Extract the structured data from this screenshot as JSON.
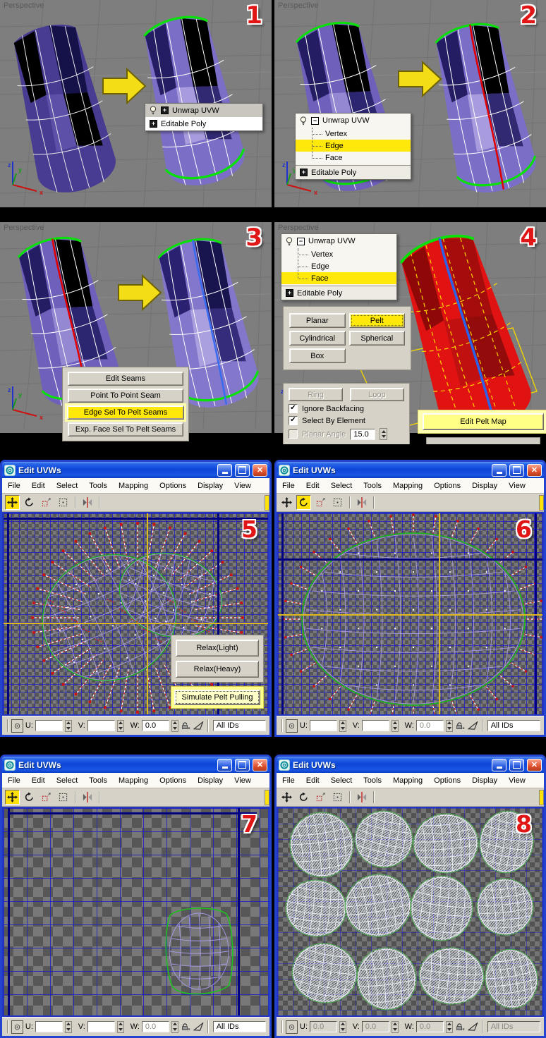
{
  "viewport_label": "Perspective",
  "axis": {
    "x": "x",
    "y": "y",
    "z": "z"
  },
  "steps": [
    "1",
    "2",
    "3",
    "4",
    "5",
    "6",
    "7",
    "8"
  ],
  "colors": {
    "selection_yellow": "#ffe80a",
    "step_number_red": "#e01616",
    "titlebar_blue": "#0c46d8",
    "seam_red": "#e00000",
    "seam_blue": "#3a6cf0",
    "rim_green": "#0ae00a",
    "uv_grid_blue": "#2222c3"
  },
  "quad_menu": {
    "items": [
      "Unwrap UVW",
      "Editable Poly"
    ]
  },
  "modifier_tree": {
    "root": "Unwrap UVW",
    "children": [
      "Vertex",
      "Edge",
      "Face"
    ],
    "base": "Editable Poly",
    "selected_in_step2": "Edge",
    "selected_in_step4": "Face"
  },
  "seam_tools": {
    "buttons": [
      "Edit Seams",
      "Point To Point Seam",
      "Edge Sel To Pelt Seams",
      "Exp. Face Sel To Pelt Seams"
    ],
    "highlighted": "Edge Sel To Pelt Seams"
  },
  "mapping": {
    "buttons": [
      "Planar",
      "Pelt",
      "Cylindrical",
      "Spherical",
      "Box"
    ],
    "highlighted": "Pelt"
  },
  "options_panel": {
    "ring": "Ring",
    "loop": "Loop",
    "ignore_backfacing": "Ignore Backfacing",
    "select_by_element": "Select By Element",
    "planar_angle": "Planar Angle",
    "planar_angle_value": "15.0",
    "check_glyph": "✔"
  },
  "pelt_tools": {
    "edit_pelt_map": "Edit Pelt Map",
    "relax_light": "Relax(Light)",
    "relax_heavy": "Relax(Heavy)",
    "simulate_pelt_pulling": "Simulate Pelt Pulling"
  },
  "uvw_window": {
    "title": "Edit UVWs",
    "menus": [
      "File",
      "Edit",
      "Select",
      "Tools",
      "Mapping",
      "Options",
      "Display",
      "View"
    ],
    "u_label": "U:",
    "v_label": "V:",
    "w_label": "W:",
    "all_ids": "All IDs",
    "expander_plus": "+",
    "expander_minus": "−"
  },
  "uvw_values": {
    "w5": {
      "u": "",
      "v": "",
      "w": "0.0"
    },
    "w6": {
      "u": "",
      "v": "",
      "w": "0.0"
    },
    "w7": {
      "u": "",
      "v": "",
      "w": "0.0"
    },
    "w8": {
      "u": "0.0",
      "v": "0.0",
      "w": "0.0"
    }
  }
}
